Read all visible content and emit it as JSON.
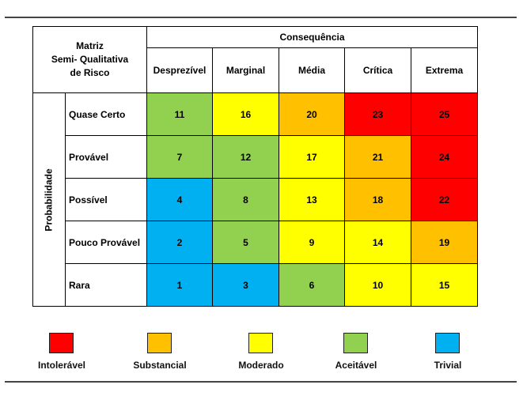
{
  "title_lines": [
    "Matriz",
    "Semi- Qualitativa",
    "de Risco"
  ],
  "consequence_header": "Consequência",
  "probability_header": "Probabilidade",
  "columns": [
    "Desprezível",
    "Marginal",
    "Média",
    "Crítica",
    "Extrema"
  ],
  "rows": [
    {
      "label": "Quase Certo",
      "values": [
        "11",
        "16",
        "20",
        "23",
        "25"
      ],
      "levels": [
        "G",
        "Y",
        "O",
        "R",
        "R"
      ]
    },
    {
      "label": "Provável",
      "values": [
        "7",
        "12",
        "17",
        "21",
        "24"
      ],
      "levels": [
        "G",
        "G",
        "Y",
        "O",
        "R"
      ]
    },
    {
      "label": "Possível",
      "values": [
        "4",
        "8",
        "13",
        "18",
        "22"
      ],
      "levels": [
        "B",
        "G",
        "Y",
        "O",
        "R"
      ]
    },
    {
      "label": "Pouco Provável",
      "values": [
        "2",
        "5",
        "9",
        "14",
        "19"
      ],
      "levels": [
        "B",
        "G",
        "Y",
        "Y",
        "O"
      ]
    },
    {
      "label": "Rara",
      "values": [
        "1",
        "3",
        "6",
        "10",
        "15"
      ],
      "levels": [
        "B",
        "B",
        "G",
        "Y",
        "Y"
      ]
    }
  ],
  "colors": {
    "R": "#ff0000",
    "O": "#ffc000",
    "Y": "#ffff00",
    "G": "#92d050",
    "B": "#00b0f0"
  },
  "legend": [
    {
      "label": "Intolerável",
      "level": "R"
    },
    {
      "label": "Substancial",
      "level": "O"
    },
    {
      "label": "Moderado",
      "level": "Y"
    },
    {
      "label": "Aceitável",
      "level": "G"
    },
    {
      "label": "Trivial",
      "level": "B"
    }
  ]
}
